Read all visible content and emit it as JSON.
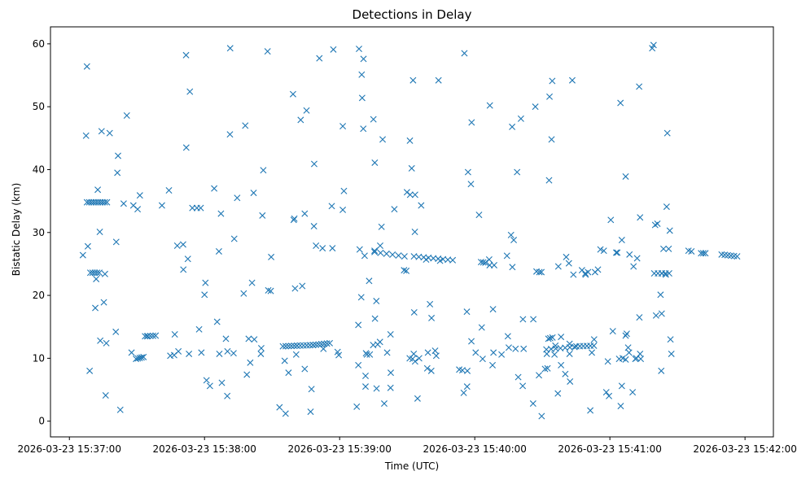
{
  "chart_data": {
    "type": "scatter",
    "title": "Detections in Delay",
    "xlabel": "Time (UTC)",
    "ylabel": "Bistatic Delay (km)",
    "marker": "x",
    "color": "#1f77b4",
    "xlim": [
      -8.4,
      312.6
    ],
    "ylim": [
      -2.5,
      62.7
    ],
    "x_unit": "seconds after 2026-03-23 15:37:00",
    "x_ticks": [
      {
        "value": 0,
        "label": "2026-03-23 15:37:00"
      },
      {
        "value": 60,
        "label": "2026-03-23 15:38:00"
      },
      {
        "value": 120,
        "label": "2026-03-23 15:39:00"
      },
      {
        "value": 180,
        "label": "2026-03-23 15:40:00"
      },
      {
        "value": 240,
        "label": "2026-03-23 15:41:00"
      },
      {
        "value": 300,
        "label": "2026-03-23 15:42:00"
      }
    ],
    "y_ticks": [
      {
        "value": 0,
        "label": "0"
      },
      {
        "value": 10,
        "label": "10"
      },
      {
        "value": 20,
        "label": "20"
      },
      {
        "value": 30,
        "label": "30"
      },
      {
        "value": 40,
        "label": "40"
      },
      {
        "value": 50,
        "label": "50"
      },
      {
        "value": 60,
        "label": "60"
      }
    ],
    "tracks": [
      {
        "x0": 7.8,
        "x1": 16.7,
        "y0": 34.8,
        "y1": 34.8,
        "n": 10
      },
      {
        "x0": 9.3,
        "x1": 13.3,
        "y0": 23.6,
        "y1": 23.6,
        "n": 5
      },
      {
        "x0": 29.6,
        "x1": 32.9,
        "y0": 9.9,
        "y1": 10.2,
        "n": 5
      },
      {
        "x0": 33.6,
        "x1": 38.3,
        "y0": 13.5,
        "y1": 13.6,
        "n": 5
      },
      {
        "x0": 94.8,
        "x1": 101.1,
        "y0": 11.9,
        "y1": 12.0,
        "n": 6
      },
      {
        "x0": 101.1,
        "x1": 108.2,
        "y0": 12.0,
        "y1": 12.1,
        "n": 6
      },
      {
        "x0": 108.2,
        "x1": 115.6,
        "y0": 12.1,
        "y1": 12.4,
        "n": 7
      },
      {
        "x0": 135.5,
        "x1": 148.8,
        "y0": 26.9,
        "y1": 26.2,
        "n": 6
      },
      {
        "x0": 153.0,
        "x1": 170.2,
        "y0": 26.2,
        "y1": 25.6,
        "n": 9
      },
      {
        "x0": 182.8,
        "x1": 184.7,
        "y0": 25.3,
        "y1": 25.2,
        "n": 3
      },
      {
        "x0": 211.8,
        "x1": 224.3,
        "y0": 11.4,
        "y1": 11.8,
        "n": 7
      },
      {
        "x0": 225.1,
        "x1": 232.9,
        "y0": 11.9,
        "y1": 12.0,
        "n": 6
      },
      {
        "x0": 259.7,
        "x1": 266.3,
        "y0": 23.5,
        "y1": 23.5,
        "n": 5
      },
      {
        "x0": 274.9,
        "x1": 276.2,
        "y0": 27.1,
        "y1": 27.0,
        "n": 2
      },
      {
        "x0": 280.5,
        "x1": 282.4,
        "y0": 26.7,
        "y1": 26.7,
        "n": 3
      },
      {
        "x0": 289.6,
        "x1": 296.5,
        "y0": 26.5,
        "y1": 26.2,
        "n": 6
      }
    ],
    "points": [
      [
        6.0,
        26.4
      ],
      [
        7.4,
        45.4
      ],
      [
        7.8,
        56.4
      ],
      [
        8.2,
        27.8
      ],
      [
        9.0,
        8.0
      ],
      [
        11.5,
        18.0
      ],
      [
        11.9,
        22.6
      ],
      [
        12.6,
        36.8
      ],
      [
        13.5,
        30.1
      ],
      [
        13.7,
        12.8
      ],
      [
        14.3,
        46.1
      ],
      [
        15.3,
        18.9
      ],
      [
        15.8,
        23.4
      ],
      [
        16.4,
        12.4
      ],
      [
        16.1,
        4.1
      ],
      [
        17.9,
        45.8
      ],
      [
        20.6,
        14.2
      ],
      [
        20.8,
        28.5
      ],
      [
        21.3,
        39.5
      ],
      [
        21.6,
        42.2
      ],
      [
        22.6,
        1.8
      ],
      [
        24.1,
        34.6
      ],
      [
        25.5,
        48.6
      ],
      [
        27.6,
        10.9
      ],
      [
        28.4,
        34.3
      ],
      [
        30.3,
        33.7
      ],
      [
        31.3,
        35.9
      ],
      [
        34.5,
        13.5
      ],
      [
        41.1,
        34.3
      ],
      [
        44.2,
        36.7
      ],
      [
        44.8,
        10.4
      ],
      [
        46.8,
        13.8
      ],
      [
        46.5,
        10.5
      ],
      [
        47.9,
        27.9
      ],
      [
        48.4,
        11.1
      ],
      [
        50.5,
        28.1
      ],
      [
        50.6,
        24.1
      ],
      [
        51.9,
        43.5
      ],
      [
        51.8,
        58.2
      ],
      [
        52.6,
        25.8
      ],
      [
        53.5,
        52.4
      ],
      [
        53.1,
        10.7
      ],
      [
        54.6,
        33.9
      ],
      [
        56.6,
        33.9
      ],
      [
        57.6,
        14.6
      ],
      [
        58.3,
        33.9
      ],
      [
        58.6,
        10.9
      ],
      [
        60.4,
        22.0
      ],
      [
        60.0,
        20.1
      ],
      [
        60.9,
        6.5
      ],
      [
        62.4,
        5.6
      ],
      [
        64.3,
        37.0
      ],
      [
        65.6,
        15.8
      ],
      [
        66.4,
        27.0
      ],
      [
        66.6,
        10.7
      ],
      [
        67.3,
        33.0
      ],
      [
        67.7,
        6.1
      ],
      [
        69.5,
        13.1
      ],
      [
        70.1,
        4.0
      ],
      [
        70.2,
        11.1
      ],
      [
        71.4,
        59.3
      ],
      [
        71.3,
        45.6
      ],
      [
        72.9,
        10.8
      ],
      [
        73.2,
        29.0
      ],
      [
        74.5,
        35.5
      ],
      [
        77.4,
        20.3
      ],
      [
        78.1,
        47.0
      ],
      [
        78.8,
        7.4
      ],
      [
        79.6,
        13.1
      ],
      [
        80.3,
        9.3
      ],
      [
        81.8,
        36.3
      ],
      [
        81.1,
        22.0
      ],
      [
        82.1,
        13.0
      ],
      [
        85.0,
        10.7
      ],
      [
        85.2,
        11.6
      ],
      [
        85.7,
        32.7
      ],
      [
        86.1,
        39.9
      ],
      [
        88.3,
        20.8
      ],
      [
        89.6,
        26.1
      ],
      [
        88.0,
        58.8
      ],
      [
        89.4,
        20.7
      ],
      [
        93.3,
        2.2
      ],
      [
        95.6,
        9.6
      ],
      [
        96.0,
        1.2
      ],
      [
        97.3,
        7.7
      ],
      [
        99.3,
        52.0
      ],
      [
        99.6,
        32.0
      ],
      [
        99.9,
        32.2
      ],
      [
        100.2,
        21.1
      ],
      [
        100.7,
        10.6
      ],
      [
        102.7,
        47.9
      ],
      [
        103.4,
        21.5
      ],
      [
        104.5,
        33.0
      ],
      [
        104.5,
        8.3
      ],
      [
        105.3,
        49.4
      ],
      [
        107.1,
        1.5
      ],
      [
        107.5,
        5.1
      ],
      [
        108.7,
        40.9
      ],
      [
        108.6,
        31.0
      ],
      [
        109.5,
        27.9
      ],
      [
        111.0,
        57.7
      ],
      [
        112.4,
        27.5
      ],
      [
        112.8,
        11.5
      ],
      [
        116.8,
        27.5
      ],
      [
        117.2,
        59.1
      ],
      [
        116.5,
        34.2
      ],
      [
        119.1,
        11.0
      ],
      [
        119.6,
        10.5
      ],
      [
        121.4,
        46.9
      ],
      [
        121.4,
        33.6
      ],
      [
        121.9,
        36.6
      ],
      [
        127.6,
        2.3
      ],
      [
        128.3,
        15.3
      ],
      [
        128.3,
        8.9
      ],
      [
        128.6,
        59.2
      ],
      [
        128.9,
        27.3
      ],
      [
        129.6,
        19.7
      ],
      [
        129.8,
        55.1
      ],
      [
        130.0,
        51.4
      ],
      [
        130.6,
        57.6
      ],
      [
        130.5,
        46.5
      ],
      [
        131.7,
        10.8
      ],
      [
        131.1,
        26.3
      ],
      [
        131.5,
        7.2
      ],
      [
        131.5,
        5.5
      ],
      [
        132.1,
        10.6
      ],
      [
        133.1,
        22.3
      ],
      [
        133.4,
        10.6
      ],
      [
        135.0,
        48.0
      ],
      [
        134.9,
        12.1
      ],
      [
        135.5,
        27.1
      ],
      [
        135.7,
        16.3
      ],
      [
        135.6,
        41.1
      ],
      [
        136.3,
        19.1
      ],
      [
        136.9,
        12.2
      ],
      [
        136.4,
        5.2
      ],
      [
        137.9,
        12.6
      ],
      [
        138.0,
        27.9
      ],
      [
        138.6,
        30.9
      ],
      [
        139.1,
        44.8
      ],
      [
        139.8,
        2.8
      ],
      [
        141.1,
        10.9
      ],
      [
        142.6,
        13.8
      ],
      [
        142.7,
        7.7
      ],
      [
        142.6,
        5.3
      ],
      [
        144.3,
        33.7
      ],
      [
        148.6,
        24.0
      ],
      [
        149.6,
        23.9
      ],
      [
        149.9,
        36.4
      ],
      [
        151.3,
        36.0
      ],
      [
        151.1,
        10.0
      ],
      [
        151.2,
        44.6
      ],
      [
        152.0,
        40.2
      ],
      [
        152.4,
        9.9
      ],
      [
        152.9,
        10.7
      ],
      [
        153.1,
        17.3
      ],
      [
        152.6,
        54.2
      ],
      [
        153.5,
        36.0
      ],
      [
        153.4,
        30.1
      ],
      [
        153.5,
        9.5
      ],
      [
        154.6,
        3.6
      ],
      [
        155.3,
        10.0
      ],
      [
        156.2,
        34.3
      ],
      [
        158.4,
        25.7
      ],
      [
        158.9,
        8.4
      ],
      [
        159.2,
        10.9
      ],
      [
        160.8,
        16.4
      ],
      [
        160.1,
        18.6
      ],
      [
        160.7,
        8.0
      ],
      [
        162.4,
        11.2
      ],
      [
        162.9,
        10.4
      ],
      [
        163.9,
        54.2
      ],
      [
        164.6,
        25.5
      ],
      [
        173.1,
        8.2
      ],
      [
        174.5,
        8.1
      ],
      [
        175.4,
        58.5
      ],
      [
        175.1,
        4.5
      ],
      [
        176.5,
        17.4
      ],
      [
        176.7,
        8.0
      ],
      [
        176.6,
        5.5
      ],
      [
        177.0,
        39.6
      ],
      [
        178.5,
        12.7
      ],
      [
        178.3,
        37.7
      ],
      [
        178.6,
        47.5
      ],
      [
        180.4,
        10.9
      ],
      [
        181.9,
        32.8
      ],
      [
        183.1,
        14.9
      ],
      [
        183.5,
        9.9
      ],
      [
        186.7,
        50.2
      ],
      [
        186.4,
        25.7
      ],
      [
        186.6,
        24.8
      ],
      [
        187.9,
        8.9
      ],
      [
        188.3,
        10.9
      ],
      [
        188.1,
        17.8
      ],
      [
        188.6,
        24.8
      ],
      [
        191.9,
        10.6
      ],
      [
        194.3,
        26.3
      ],
      [
        194.7,
        13.5
      ],
      [
        195.1,
        11.7
      ],
      [
        196.1,
        29.6
      ],
      [
        196.6,
        46.8
      ],
      [
        197.3,
        28.8
      ],
      [
        196.7,
        24.5
      ],
      [
        198.1,
        11.5
      ],
      [
        198.8,
        39.6
      ],
      [
        199.3,
        7.0
      ],
      [
        200.5,
        48.1
      ],
      [
        201.4,
        16.2
      ],
      [
        201.3,
        5.6
      ],
      [
        201.7,
        11.5
      ],
      [
        206.0,
        16.2
      ],
      [
        205.9,
        2.8
      ],
      [
        206.9,
        50.0
      ],
      [
        207.4,
        23.8
      ],
      [
        208.5,
        7.3
      ],
      [
        208.7,
        23.7
      ],
      [
        209.7,
        0.8
      ],
      [
        209.6,
        23.7
      ],
      [
        211.2,
        8.3
      ],
      [
        212.3,
        8.4
      ],
      [
        212.7,
        13.1
      ],
      [
        212.0,
        10.7
      ],
      [
        213.0,
        38.3
      ],
      [
        213.2,
        51.6
      ],
      [
        213.5,
        13.2
      ],
      [
        214.1,
        44.8
      ],
      [
        214.5,
        13.3
      ],
      [
        214.4,
        54.1
      ],
      [
        215.4,
        10.6
      ],
      [
        215.8,
        12.0
      ],
      [
        216.9,
        4.4
      ],
      [
        217.1,
        24.6
      ],
      [
        218.3,
        13.4
      ],
      [
        218.3,
        8.9
      ],
      [
        220.6,
        26.1
      ],
      [
        220.2,
        7.5
      ],
      [
        221.8,
        25.1
      ],
      [
        222.1,
        10.7
      ],
      [
        222.3,
        6.3
      ],
      [
        222.1,
        12.3
      ],
      [
        223.8,
        23.3
      ],
      [
        223.3,
        54.2
      ],
      [
        227.6,
        24.0
      ],
      [
        229.1,
        23.5
      ],
      [
        229.2,
        23.3
      ],
      [
        230.3,
        23.7
      ],
      [
        231.3,
        1.7
      ],
      [
        232.0,
        10.9
      ],
      [
        233.0,
        13.0
      ],
      [
        233.4,
        23.7
      ],
      [
        234.7,
        24.1
      ],
      [
        235.8,
        27.3
      ],
      [
        237.3,
        27.1
      ],
      [
        238.4,
        4.6
      ],
      [
        239.1,
        9.5
      ],
      [
        239.6,
        4.0
      ],
      [
        240.4,
        32.0
      ],
      [
        241.3,
        14.3
      ],
      [
        242.8,
        26.8
      ],
      [
        243.3,
        26.8
      ],
      [
        244.7,
        50.6
      ],
      [
        244.1,
        9.9
      ],
      [
        244.8,
        2.4
      ],
      [
        245.3,
        5.6
      ],
      [
        245.3,
        28.8
      ],
      [
        245.7,
        10.0
      ],
      [
        247.0,
        38.9
      ],
      [
        247.0,
        13.6
      ],
      [
        247.5,
        13.9
      ],
      [
        247.0,
        9.8
      ],
      [
        248.1,
        11.7
      ],
      [
        248.7,
        26.5
      ],
      [
        248.5,
        10.9
      ],
      [
        250.1,
        4.6
      ],
      [
        250.5,
        24.6
      ],
      [
        251.3,
        9.9
      ],
      [
        251.8,
        10.0
      ],
      [
        252.1,
        25.9
      ],
      [
        253.0,
        53.2
      ],
      [
        253.1,
        16.5
      ],
      [
        253.4,
        32.4
      ],
      [
        253.4,
        10.7
      ],
      [
        253.7,
        9.9
      ],
      [
        258.8,
        59.3
      ],
      [
        259.4,
        59.8
      ],
      [
        260.1,
        31.2
      ],
      [
        260.5,
        16.8
      ],
      [
        261.1,
        31.4
      ],
      [
        262.5,
        20.1
      ],
      [
        262.8,
        8.0
      ],
      [
        263.1,
        23.5
      ],
      [
        263.8,
        27.4
      ],
      [
        264.8,
        23.3
      ],
      [
        265.2,
        34.1
      ],
      [
        265.5,
        45.8
      ],
      [
        266.1,
        27.4
      ],
      [
        266.6,
        30.3
      ],
      [
        266.9,
        13.0
      ],
      [
        267.3,
        10.7
      ],
      [
        263.0,
        17.1
      ]
    ]
  }
}
